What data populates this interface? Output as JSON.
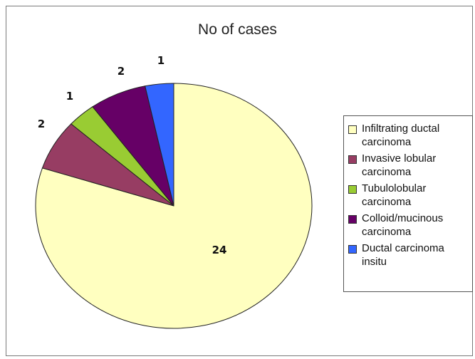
{
  "chart_data": {
    "type": "pie",
    "title": "No of cases",
    "categories": [
      "Infiltrating ductal carcinoma",
      "Invasive lobular carcinoma",
      "Tubulolobular carcinoma",
      "Colloid/mucinous carcinoma",
      "Ductal carcinoma insitu"
    ],
    "values": [
      24,
      2,
      1,
      2,
      1
    ],
    "data_labels": [
      "24",
      "2",
      "1",
      "2",
      "1"
    ],
    "colors": [
      "#ffffc0",
      "#973d63",
      "#99cc33",
      "#660066",
      "#3366ff"
    ],
    "legend_position": "right"
  }
}
